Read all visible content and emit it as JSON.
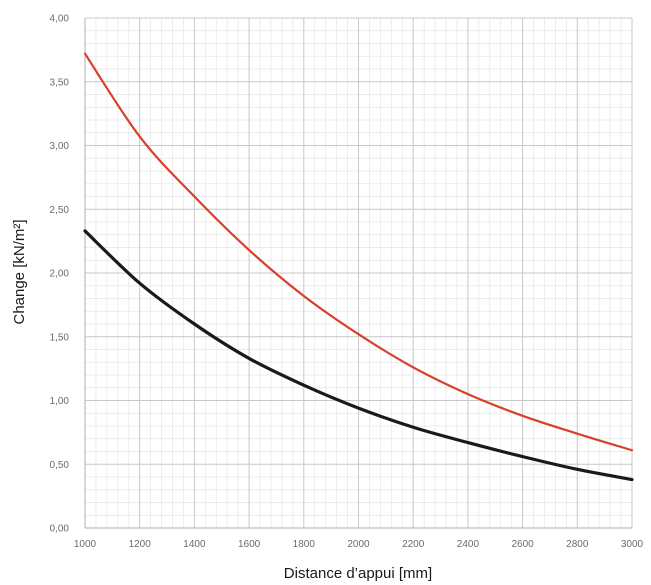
{
  "chart_data": {
    "type": "line",
    "title": "",
    "xlabel": "Distance d’appui [mm]",
    "ylabel": "Change [kN/m²]",
    "xlim": [
      1000,
      3000
    ],
    "ylim": [
      0,
      4
    ],
    "grid": true,
    "minor_grid": true,
    "x_ticks": [
      1000,
      1200,
      1400,
      1600,
      1800,
      2000,
      2200,
      2400,
      2600,
      2800,
      3000
    ],
    "x_tick_labels": [
      "1000",
      "1200",
      "1400",
      "1600",
      "1800",
      "2000",
      "2200",
      "2400",
      "2600",
      "2800",
      "3000"
    ],
    "y_ticks": [
      0,
      0.5,
      1,
      1.5,
      2,
      2.5,
      3,
      3.5,
      4
    ],
    "y_tick_labels": [
      "0,00",
      "0,50",
      "1,00",
      "1,50",
      "2,00",
      "2,50",
      "3,00",
      "3,50",
      "4,00"
    ],
    "x": [
      1000,
      1200,
      1400,
      1600,
      1800,
      2000,
      2200,
      2400,
      2600,
      2800,
      3000
    ],
    "series": [
      {
        "color": "#d9402b",
        "values": [
          3.72,
          3.07,
          2.6,
          2.18,
          1.82,
          1.52,
          1.26,
          1.05,
          0.88,
          0.74,
          0.61
        ]
      },
      {
        "color": "#1a1a1a",
        "values": [
          2.33,
          1.92,
          1.6,
          1.33,
          1.12,
          0.94,
          0.79,
          0.67,
          0.56,
          0.46,
          0.38
        ]
      }
    ],
    "colors": {
      "major_grid": "#c9c9c9",
      "minor_grid": "#e6e6e6",
      "axis": "#bdbdbd",
      "tick_text": "#6b6b6b",
      "title_text": "#1a1a1a"
    }
  }
}
